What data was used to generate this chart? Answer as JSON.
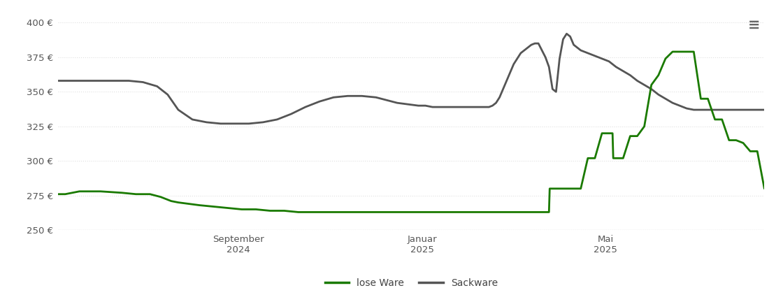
{
  "ylim": [
    250,
    410
  ],
  "yticks": [
    250,
    275,
    300,
    325,
    350,
    375,
    400
  ],
  "ytick_labels": [
    "250 €",
    "275 €",
    "300 €",
    "325 €",
    "350 €",
    "375 €",
    "400 €"
  ],
  "xtick_positions": [
    0.255,
    0.515,
    0.775
  ],
  "xtick_labels": [
    "September\n2024",
    "Januar\n2025",
    "Mai\n2025"
  ],
  "line_lose_color": "#1a7a00",
  "line_sack_color": "#555555",
  "line_width": 2.0,
  "background_color": "#ffffff",
  "grid_color": "#e0e0e0",
  "grid_style": "dotted",
  "legend_labels": [
    "lose Ware",
    "Sackware"
  ],
  "hamburger_color": "#666666",
  "lose_ware": {
    "x": [
      0.0,
      0.01,
      0.03,
      0.06,
      0.09,
      0.11,
      0.13,
      0.145,
      0.155,
      0.16,
      0.17,
      0.185,
      0.2,
      0.22,
      0.24,
      0.26,
      0.28,
      0.3,
      0.32,
      0.34,
      0.36,
      0.38,
      0.4,
      0.42,
      0.44,
      0.46,
      0.48,
      0.5,
      0.51,
      0.514,
      0.515,
      0.516,
      0.52,
      0.53,
      0.54,
      0.55,
      0.56,
      0.57,
      0.58,
      0.59,
      0.6,
      0.61,
      0.615,
      0.616,
      0.62,
      0.63,
      0.64,
      0.645,
      0.646,
      0.65,
      0.66,
      0.665,
      0.666,
      0.67,
      0.68,
      0.69,
      0.695,
      0.696,
      0.7,
      0.71,
      0.72,
      0.73,
      0.74,
      0.75,
      0.755,
      0.756,
      0.76,
      0.77,
      0.78,
      0.785,
      0.786,
      0.79,
      0.8,
      0.81,
      0.82,
      0.83,
      0.84,
      0.85,
      0.86,
      0.87,
      0.88,
      0.89,
      0.9,
      0.91,
      0.92,
      0.93,
      0.94,
      0.95,
      0.96,
      0.97,
      0.98,
      0.99,
      1.0
    ],
    "y": [
      276,
      276,
      278,
      278,
      277,
      276,
      276,
      274,
      272,
      271,
      270,
      269,
      268,
      267,
      266,
      265,
      265,
      264,
      264,
      263,
      263,
      263,
      263,
      263,
      263,
      263,
      263,
      263,
      263,
      263,
      263,
      263,
      263,
      263,
      263,
      263,
      263,
      263,
      263,
      263,
      263,
      263,
      263,
      263,
      263,
      263,
      263,
      263,
      263,
      263,
      263,
      263,
      263,
      263,
      263,
      263,
      263,
      280,
      280,
      280,
      280,
      280,
      280,
      302,
      302,
      302,
      302,
      320,
      320,
      320,
      302,
      302,
      302,
      318,
      318,
      325,
      355,
      362,
      374,
      379,
      379,
      379,
      379,
      345,
      345,
      330,
      330,
      315,
      315,
      313,
      307,
      307,
      280
    ]
  },
  "sackware": {
    "x": [
      0.0,
      0.01,
      0.03,
      0.06,
      0.08,
      0.1,
      0.12,
      0.14,
      0.155,
      0.17,
      0.19,
      0.21,
      0.23,
      0.25,
      0.27,
      0.29,
      0.31,
      0.33,
      0.35,
      0.37,
      0.39,
      0.41,
      0.43,
      0.45,
      0.465,
      0.48,
      0.495,
      0.51,
      0.52,
      0.53,
      0.54,
      0.55,
      0.56,
      0.57,
      0.58,
      0.59,
      0.6,
      0.61,
      0.615,
      0.62,
      0.625,
      0.63,
      0.635,
      0.64,
      0.645,
      0.65,
      0.655,
      0.66,
      0.665,
      0.67,
      0.675,
      0.68,
      0.685,
      0.69,
      0.695,
      0.7,
      0.705,
      0.71,
      0.715,
      0.72,
      0.725,
      0.73,
      0.74,
      0.75,
      0.76,
      0.77,
      0.78,
      0.79,
      0.8,
      0.81,
      0.82,
      0.83,
      0.84,
      0.85,
      0.86,
      0.87,
      0.88,
      0.89,
      0.9,
      0.91,
      0.92,
      0.93,
      0.94,
      0.95,
      0.96,
      0.97,
      0.98,
      0.99,
      1.0
    ],
    "y": [
      358,
      358,
      358,
      358,
      358,
      358,
      357,
      354,
      348,
      337,
      330,
      328,
      327,
      327,
      327,
      328,
      330,
      334,
      339,
      343,
      346,
      347,
      347,
      346,
      344,
      342,
      341,
      340,
      340,
      339,
      339,
      339,
      339,
      339,
      339,
      339,
      339,
      339,
      340,
      342,
      346,
      352,
      358,
      364,
      370,
      374,
      378,
      380,
      382,
      384,
      385,
      385,
      380,
      375,
      368,
      352,
      350,
      374,
      388,
      392,
      390,
      384,
      380,
      378,
      376,
      374,
      372,
      368,
      365,
      362,
      358,
      355,
      352,
      348,
      345,
      342,
      340,
      338,
      337,
      337,
      337,
      337,
      337,
      337,
      337,
      337,
      337,
      337,
      337
    ]
  }
}
